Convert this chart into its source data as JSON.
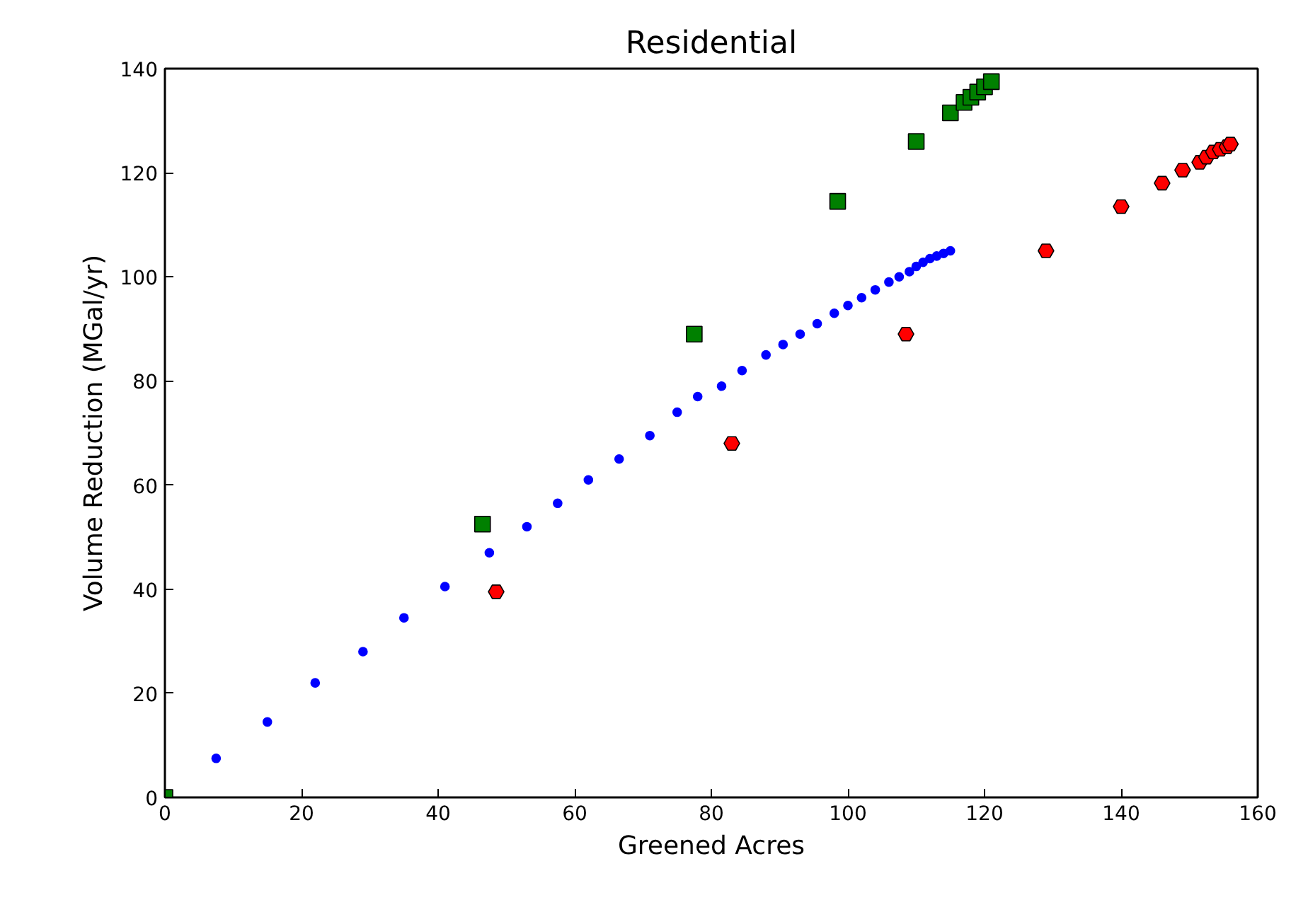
{
  "chart_data": {
    "type": "scatter",
    "title": "Residential",
    "xlabel": "Greened Acres",
    "ylabel": "Volume Reduction (MGal/yr)",
    "xlim": [
      0,
      160
    ],
    "xticks": [
      0,
      20,
      40,
      60,
      80,
      100,
      120,
      140,
      160
    ],
    "ylim": [
      0,
      140
    ],
    "yticks": [
      0,
      20,
      40,
      60,
      80,
      100,
      120,
      140
    ],
    "grid": false,
    "series": [
      {
        "color": "#0000ff",
        "marker": "circle",
        "x": [
          7.5,
          15,
          22,
          29,
          35,
          41,
          47.5,
          53,
          57.5,
          62,
          66.5,
          71,
          75,
          78,
          81.5,
          84.5,
          88,
          90.5,
          93,
          95.5,
          98,
          100,
          102,
          104,
          106,
          107.5,
          109,
          110,
          111,
          112,
          113,
          114,
          115
        ],
        "values": [
          7.5,
          14.5,
          22,
          28,
          34.5,
          40.5,
          47,
          52,
          56.5,
          61,
          65,
          69.5,
          74,
          77,
          79,
          82,
          85,
          87,
          89,
          91,
          93,
          94.5,
          96,
          97.5,
          99,
          100,
          101,
          102,
          102.8,
          103.5,
          104,
          104.5,
          105
        ]
      },
      {
        "color": "#008000",
        "marker": "square",
        "x": [
          0,
          46.5,
          77.5,
          98.5,
          110,
          115,
          117,
          118,
          119,
          120,
          121
        ],
        "values": [
          0,
          52.5,
          89,
          114.5,
          126,
          131.5,
          133.5,
          134.5,
          135.5,
          136.5,
          137.5
        ]
      },
      {
        "color": "#ff0000",
        "x": [
          48.5,
          83,
          108.5,
          129,
          140,
          146,
          149,
          151.5,
          152.5,
          153.5,
          154.5,
          155.5,
          156
        ],
        "values": [
          39.5,
          68,
          89,
          105,
          113.5,
          118,
          120.5,
          122,
          123,
          124,
          124.5,
          125,
          125.5
        ]
      }
    ]
  }
}
